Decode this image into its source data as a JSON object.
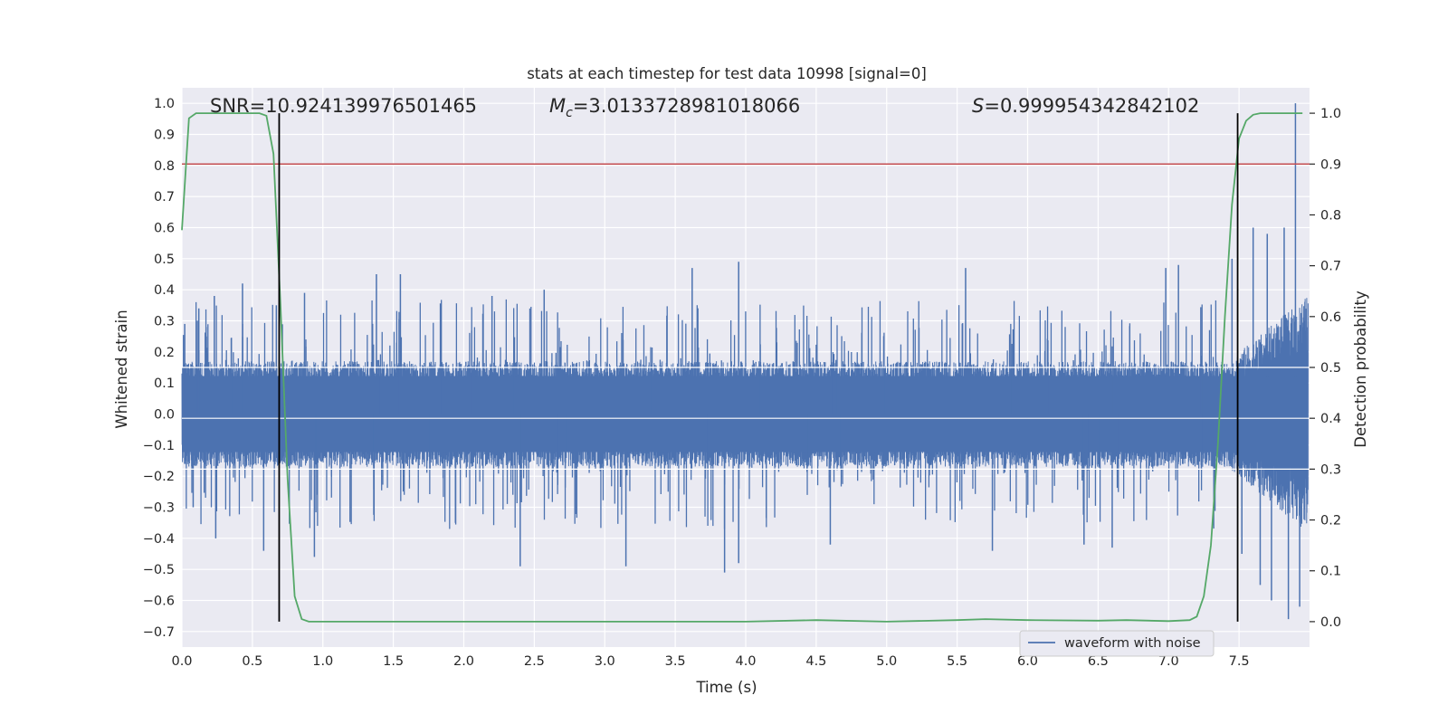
{
  "chart_data": {
    "type": "line",
    "title": "stats at each timestep for test data 10998 [signal=0]",
    "xlabel": "Time (s)",
    "ylabel": "Whitened strain",
    "y2label": "Detection probability",
    "xlim": [
      0.0,
      8.0
    ],
    "ylim": [
      -0.75,
      1.05
    ],
    "y2lim": [
      -0.05,
      1.05
    ],
    "x_ticks": [
      0.0,
      0.5,
      1.0,
      1.5,
      2.0,
      2.5,
      3.0,
      3.5,
      4.0,
      4.5,
      5.0,
      5.5,
      6.0,
      6.5,
      7.0,
      7.5
    ],
    "x_tick_labels": [
      "0.0",
      "0.5",
      "1.0",
      "1.5",
      "2.0",
      "2.5",
      "3.0",
      "3.5",
      "4.0",
      "4.5",
      "5.0",
      "5.5",
      "6.0",
      "6.5",
      "7.0",
      "7.5"
    ],
    "y_ticks": [
      -0.7,
      -0.6,
      -0.5,
      -0.4,
      -0.3,
      -0.2,
      -0.1,
      0.0,
      0.1,
      0.2,
      0.3,
      0.4,
      0.5,
      0.6,
      0.7,
      0.8,
      0.9,
      1.0
    ],
    "y_tick_labels": [
      "−0.7",
      "−0.6",
      "−0.5",
      "−0.4",
      "−0.3",
      "−0.2",
      "−0.1",
      "0.0",
      "0.1",
      "0.2",
      "0.3",
      "0.4",
      "0.5",
      "0.6",
      "0.7",
      "0.8",
      "0.9",
      "1.0"
    ],
    "y2_ticks": [
      0.0,
      0.1,
      0.2,
      0.3,
      0.4,
      0.5,
      0.6,
      0.7,
      0.8,
      0.9,
      1.0
    ],
    "y2_tick_labels": [
      "0.0",
      "0.1",
      "0.2",
      "0.3",
      "0.4",
      "0.5",
      "0.6",
      "0.7",
      "0.8",
      "0.9",
      "1.0"
    ],
    "grid": true,
    "legend_placement": "lower-right",
    "annotations": {
      "snr": "SNR=10.924139976501465",
      "mc_symbol": "M",
      "mc_sub": "c",
      "mc_value": "=3.0133728981018066",
      "s_symbol": "S",
      "s_value": "=0.999954342842102"
    },
    "series": [
      {
        "name": "waveform with noise",
        "color": "#4c72b0",
        "axis": "left",
        "description_sampled": "whitened strain noise, approx 0.17 amplitude core band with spikes up to ~0.5; stronger oscillation after 7.4 s peaking at 1.0",
        "x_range": [
          0.0,
          7.99
        ],
        "core_amplitude": 0.17,
        "spikes": [
          {
            "x": 0.02,
            "y": 0.29
          },
          {
            "x": 0.12,
            "y": 0.34
          },
          {
            "x": 0.23,
            "y": 0.38
          },
          {
            "x": 0.43,
            "y": 0.42
          },
          {
            "x": 0.67,
            "y": 0.35
          },
          {
            "x": 0.87,
            "y": 0.39
          },
          {
            "x": 1.38,
            "y": 0.45
          },
          {
            "x": 1.55,
            "y": 0.45
          },
          {
            "x": 2.2,
            "y": 0.38
          },
          {
            "x": 2.57,
            "y": 0.4
          },
          {
            "x": 3.62,
            "y": 0.47
          },
          {
            "x": 3.95,
            "y": 0.49
          },
          {
            "x": 5.56,
            "y": 0.47
          },
          {
            "x": 6.98,
            "y": 0.47
          },
          {
            "x": 7.07,
            "y": 0.48
          },
          {
            "x": 0.08,
            "y": -0.3
          },
          {
            "x": 0.24,
            "y": -0.4
          },
          {
            "x": 0.58,
            "y": -0.44
          },
          {
            "x": 0.94,
            "y": -0.46
          },
          {
            "x": 2.4,
            "y": -0.49
          },
          {
            "x": 3.15,
            "y": -0.49
          },
          {
            "x": 3.85,
            "y": -0.51
          },
          {
            "x": 3.95,
            "y": -0.48
          },
          {
            "x": 4.6,
            "y": -0.42
          },
          {
            "x": 5.75,
            "y": -0.44
          },
          {
            "x": 6.4,
            "y": -0.42
          },
          {
            "x": 6.6,
            "y": -0.43
          }
        ],
        "tail": [
          {
            "x": 7.45,
            "y": 0.5
          },
          {
            "x": 7.52,
            "y": -0.45
          },
          {
            "x": 7.6,
            "y": 0.6
          },
          {
            "x": 7.65,
            "y": -0.55
          },
          {
            "x": 7.7,
            "y": 0.58
          },
          {
            "x": 7.73,
            "y": -0.6
          },
          {
            "x": 7.82,
            "y": 0.6
          },
          {
            "x": 7.85,
            "y": -0.66
          },
          {
            "x": 7.9,
            "y": 1.0
          },
          {
            "x": 7.93,
            "y": -0.62
          }
        ]
      },
      {
        "name": "",
        "color": "#55a868",
        "axis": "right",
        "x": [
          0.0,
          0.05,
          0.1,
          0.2,
          0.3,
          0.4,
          0.5,
          0.55,
          0.6,
          0.65,
          0.7,
          0.75,
          0.8,
          0.85,
          0.9,
          1.0,
          1.5,
          2.0,
          2.5,
          3.0,
          3.5,
          4.0,
          4.5,
          5.0,
          5.5,
          5.7,
          6.0,
          6.5,
          6.7,
          7.0,
          7.15,
          7.2,
          7.25,
          7.3,
          7.35,
          7.4,
          7.45,
          7.5,
          7.55,
          7.6,
          7.65,
          7.7,
          7.8,
          7.9,
          7.95
        ],
        "y": [
          0.77,
          0.99,
          1.0,
          1.0,
          1.0,
          1.0,
          1.0,
          1.0,
          0.995,
          0.92,
          0.62,
          0.28,
          0.05,
          0.005,
          0.0,
          0.0,
          0.0,
          0.0,
          0.0,
          0.0,
          0.0,
          0.0,
          0.003,
          0.0,
          0.003,
          0.005,
          0.003,
          0.002,
          0.003,
          0.001,
          0.003,
          0.01,
          0.05,
          0.15,
          0.35,
          0.6,
          0.82,
          0.95,
          0.985,
          0.997,
          1.0,
          1.0,
          1.0,
          1.0,
          1.0
        ]
      },
      {
        "name": "",
        "color": "#c44e52",
        "axis": "right",
        "type": "hline",
        "y": 0.9
      },
      {
        "name": "",
        "color": "#000000",
        "axis": "right",
        "type": "vlines",
        "x": [
          0.69,
          7.49
        ],
        "ymin": 0.0,
        "ymax": 1.0
      }
    ]
  }
}
